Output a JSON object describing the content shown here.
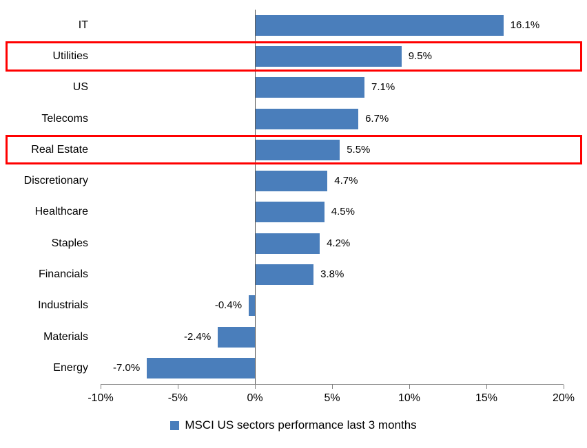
{
  "chart_data": {
    "type": "bar",
    "orientation": "horizontal",
    "title": "",
    "categories": [
      "IT",
      "Utilities",
      "US",
      "Telecoms",
      "Real Estate",
      "Discretionary",
      "Healthcare",
      "Staples",
      "Financials",
      "Industrials",
      "Materials",
      "Energy"
    ],
    "values": [
      16.1,
      9.5,
      7.1,
      6.7,
      5.5,
      4.7,
      4.5,
      4.2,
      3.8,
      -0.4,
      -2.4,
      -7.0
    ],
    "value_labels": [
      "16.1%",
      "9.5%",
      "7.1%",
      "6.7%",
      "5.5%",
      "4.7%",
      "4.5%",
      "4.2%",
      "3.8%",
      "-0.4%",
      "-2.4%",
      "-7.0%"
    ],
    "highlighted_categories": [
      "Utilities",
      "Real Estate"
    ],
    "x_ticks": [
      "-10%",
      "-5%",
      "0%",
      "5%",
      "10%",
      "15%",
      "20%"
    ],
    "x_tick_values": [
      -10,
      -5,
      0,
      5,
      10,
      15,
      20
    ],
    "xlim": [
      -10,
      20
    ],
    "grid": "off",
    "legend": "MSCI US sectors performance last 3 months",
    "legend_position": "bottom-center",
    "bar_color": "#4A7EBB",
    "highlight_color": "#FF0000",
    "axis_color": "#808080"
  }
}
